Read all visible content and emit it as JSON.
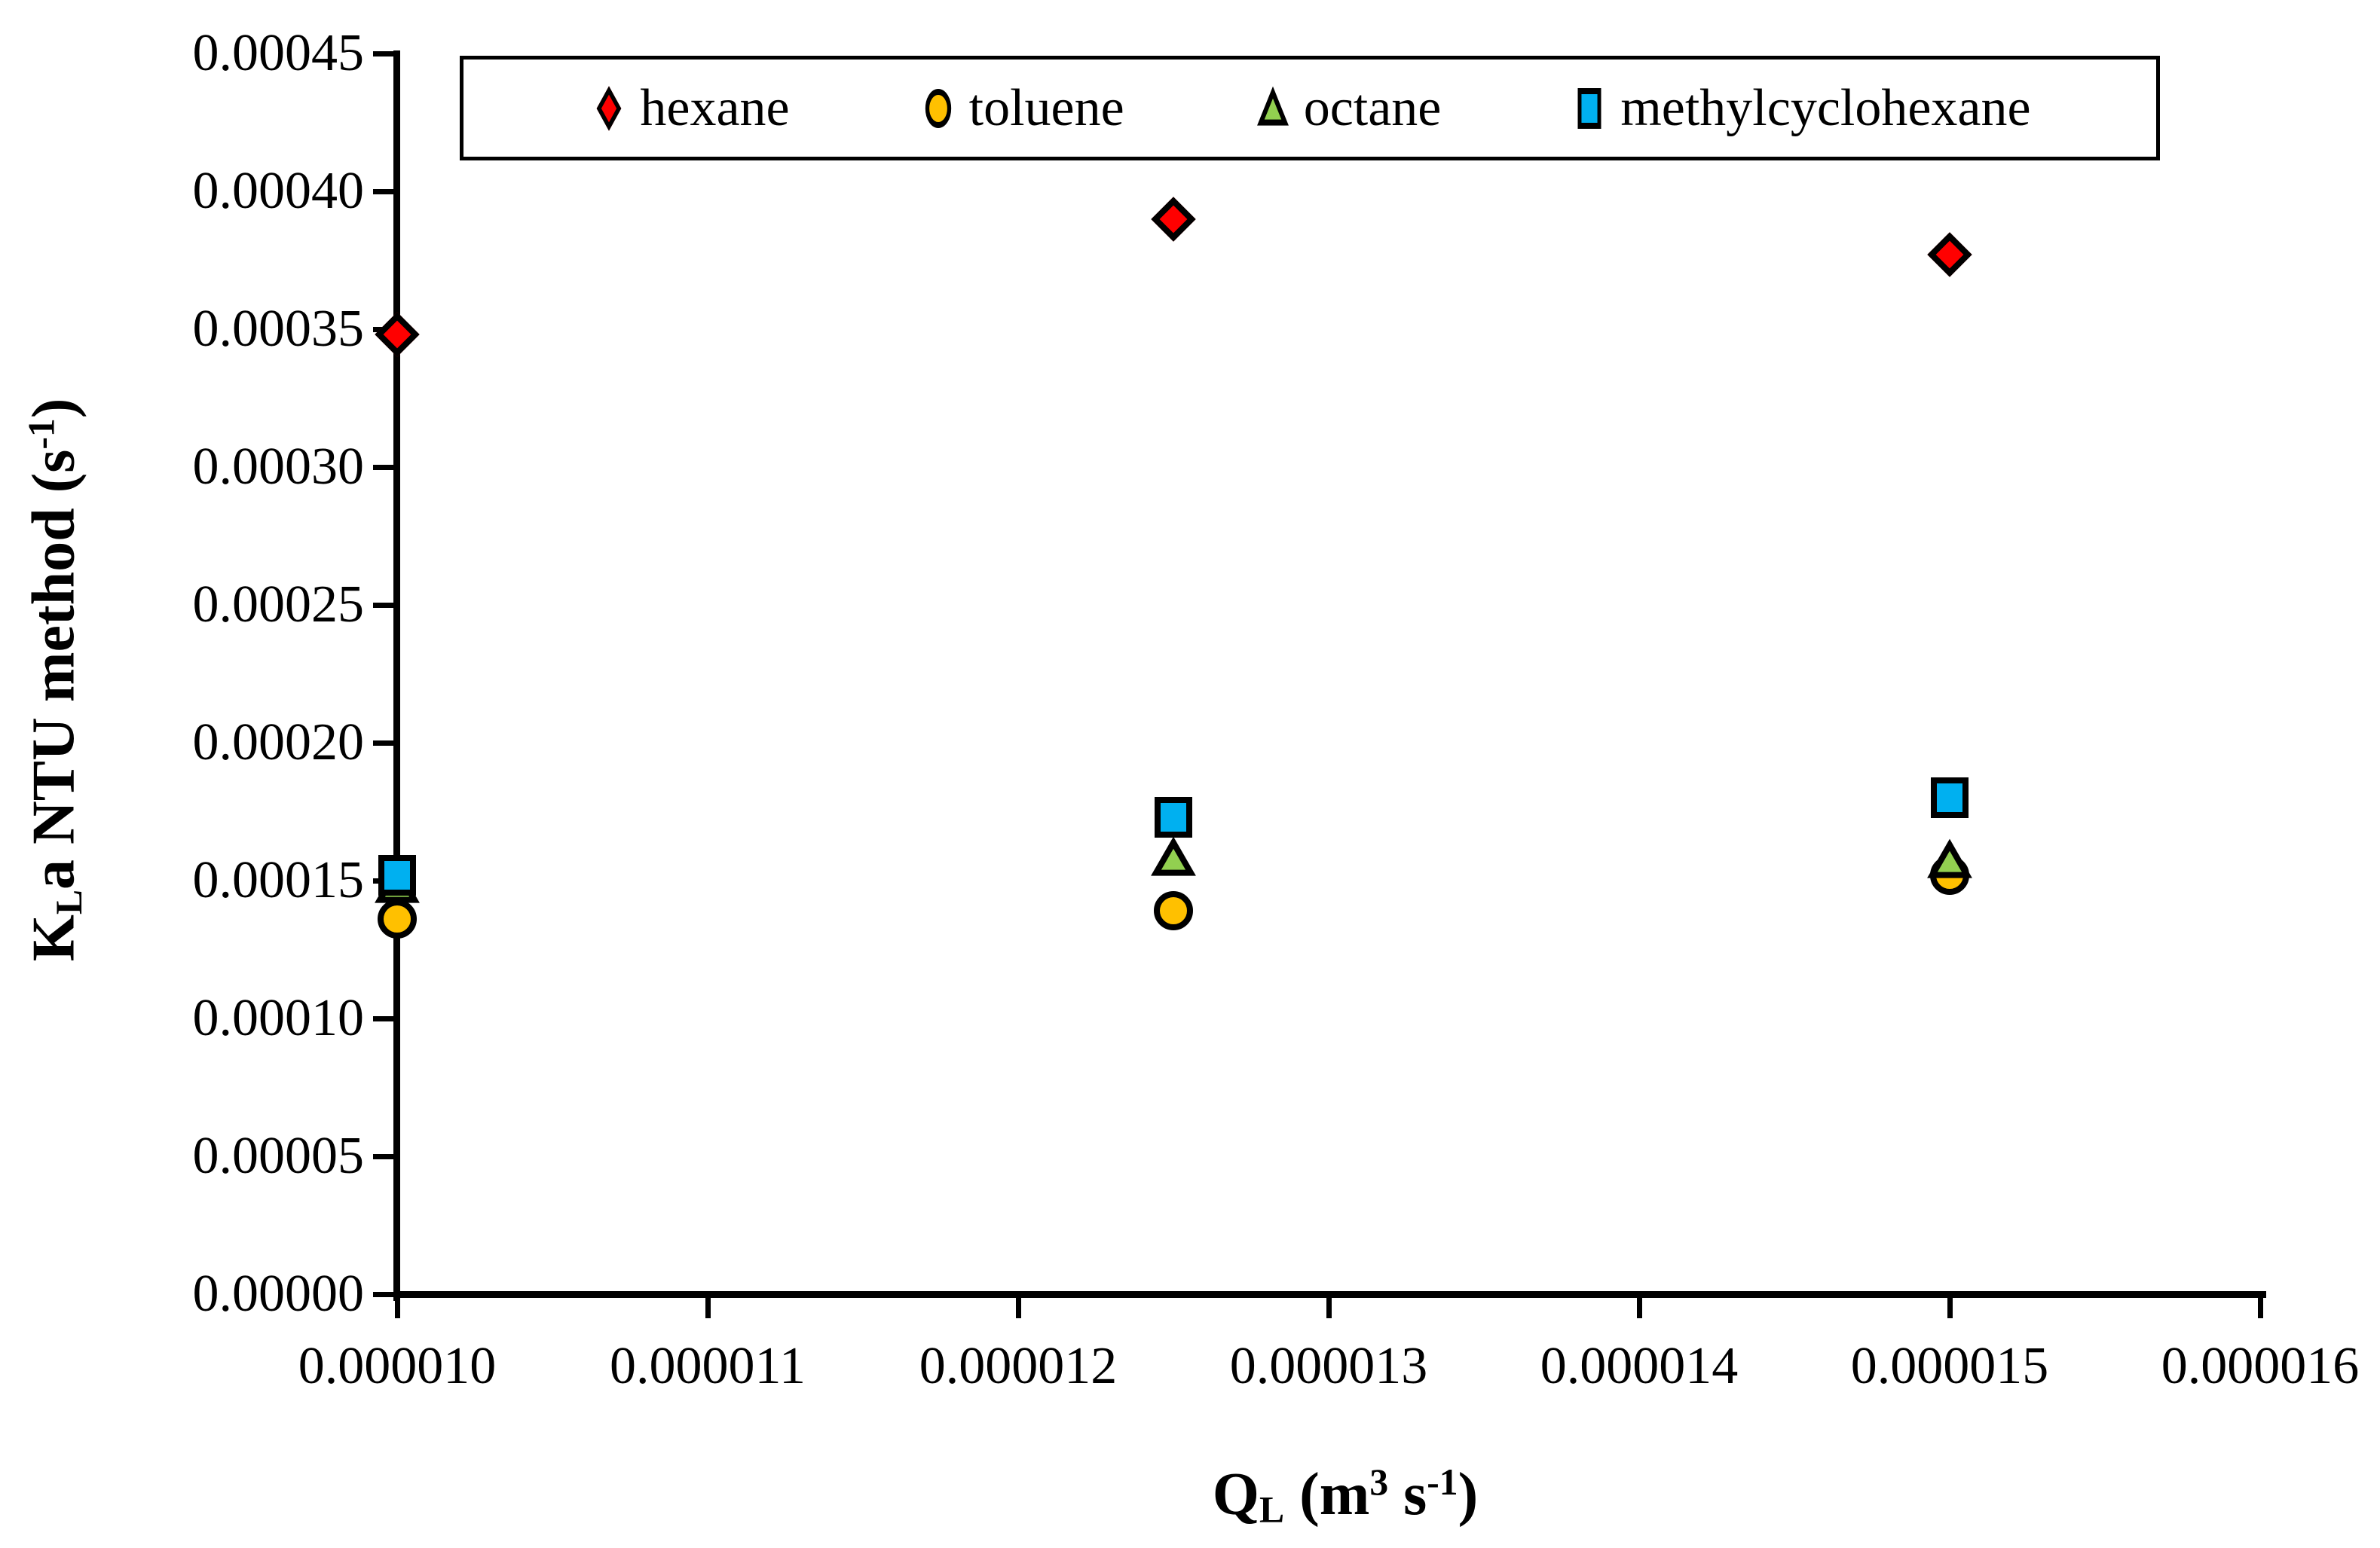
{
  "figure": {
    "background": "#FFFFFF",
    "axis_color": "#000000"
  },
  "chart_data": {
    "type": "scatter",
    "title": "",
    "x": [
      1e-05,
      1.25e-05,
      1.5e-05
    ],
    "series": [
      {
        "name": "hexane",
        "marker": "diamond",
        "color": "#FF0000",
        "values": [
          0.000348,
          0.00039,
          0.000377
        ]
      },
      {
        "name": "toluene",
        "marker": "circle",
        "color": "#FFC000",
        "values": [
          0.000136,
          0.000139,
          0.000152
        ]
      },
      {
        "name": "octane",
        "marker": "triangle",
        "color": "#92D050",
        "values": [
          0.000148,
          0.000158,
          0.000157
        ]
      },
      {
        "name": "methylcyclohexane",
        "marker": "square",
        "color": "#00B0F0",
        "values": [
          0.000152,
          0.000173,
          0.00018
        ]
      }
    ],
    "x_axis": {
      "title_parts": [
        [
          "Q",
          ""
        ],
        [
          "L",
          "sub"
        ],
        [
          " (m",
          ""
        ],
        [
          "3",
          "sup"
        ],
        [
          " s",
          ""
        ],
        [
          "-1",
          "sup"
        ],
        [
          ")",
          ""
        ]
      ],
      "tick_labels": [
        "0.000010",
        "0.000011",
        "0.000012",
        "0.000013",
        "0.000014",
        "0.000015",
        "0.000016"
      ],
      "min": 1e-05,
      "max": 1.6e-05
    },
    "y_axis": {
      "title_parts": [
        [
          "K",
          ""
        ],
        [
          "L",
          "sub"
        ],
        [
          "a NTU method (s",
          ""
        ],
        [
          "-1",
          "sup"
        ],
        [
          ")",
          ""
        ]
      ],
      "tick_labels": [
        "0.00000",
        "0.00005",
        "0.00010",
        "0.00015",
        "0.00020",
        "0.00025",
        "0.00030",
        "0.00035",
        "0.00040",
        "0.00045"
      ],
      "min": 0,
      "max": 0.00045
    },
    "legend": {
      "position": "top-center",
      "border": true
    },
    "gridlines": false
  }
}
